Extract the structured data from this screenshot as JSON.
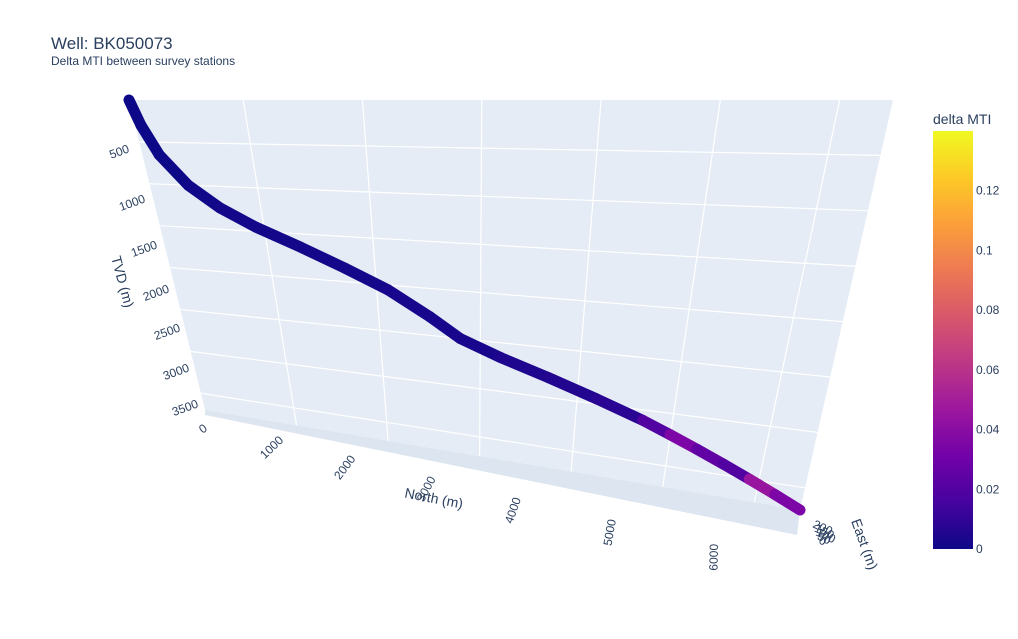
{
  "title": "Well: BK050073",
  "subtitle": "Delta MTI between survey stations",
  "chart_data": {
    "type": "line",
    "mode": "3d-trajectory",
    "x_axis": {
      "label": "North (m)",
      "ticks": [
        "0",
        "1000",
        "2000",
        "3000",
        "4000",
        "5000",
        "6000"
      ]
    },
    "y_axis": {
      "label": "East (m)",
      "ticks": [
        "200",
        "150",
        "100",
        "50",
        "0"
      ]
    },
    "z_axis": {
      "label": "TVD (m)",
      "ticks": [
        "500",
        "1000",
        "1500",
        "2000",
        "2500",
        "3000",
        "3500"
      ]
    },
    "colorbar": {
      "title": "delta MTI",
      "range": [
        0,
        0.14
      ],
      "ticks": [
        "0.12",
        "0.1",
        "0.08",
        "0.06",
        "0.04",
        "0.02",
        "0"
      ],
      "colorscale": [
        "#0d0887",
        "#46039f",
        "#7201a8",
        "#9c179e",
        "#bd3786",
        "#d8576b",
        "#ed7953",
        "#fb9f3a",
        "#fdca26",
        "#f0f921"
      ]
    },
    "series": [
      {
        "north": [
          0,
          50,
          150,
          350,
          600,
          900,
          1300,
          1700,
          2100,
          2500,
          2800,
          3200,
          3700,
          4200,
          4700,
          5000,
          5300,
          5600,
          5900,
          6200,
          6500
        ],
        "tvd": [
          0,
          300,
          650,
          1000,
          1250,
          1450,
          1650,
          1850,
          2050,
          2300,
          2500,
          2650,
          2800,
          2950,
          3100,
          3200,
          3300,
          3400,
          3500,
          3600,
          3700
        ],
        "delta_mti": [
          0.0,
          0.0,
          0.0,
          0.001,
          0.002,
          0.002,
          0.002,
          0.002,
          0.003,
          0.003,
          0.003,
          0.005,
          0.006,
          0.008,
          0.02,
          0.035,
          0.025,
          0.02,
          0.045,
          0.035,
          0.03
        ]
      }
    ]
  }
}
